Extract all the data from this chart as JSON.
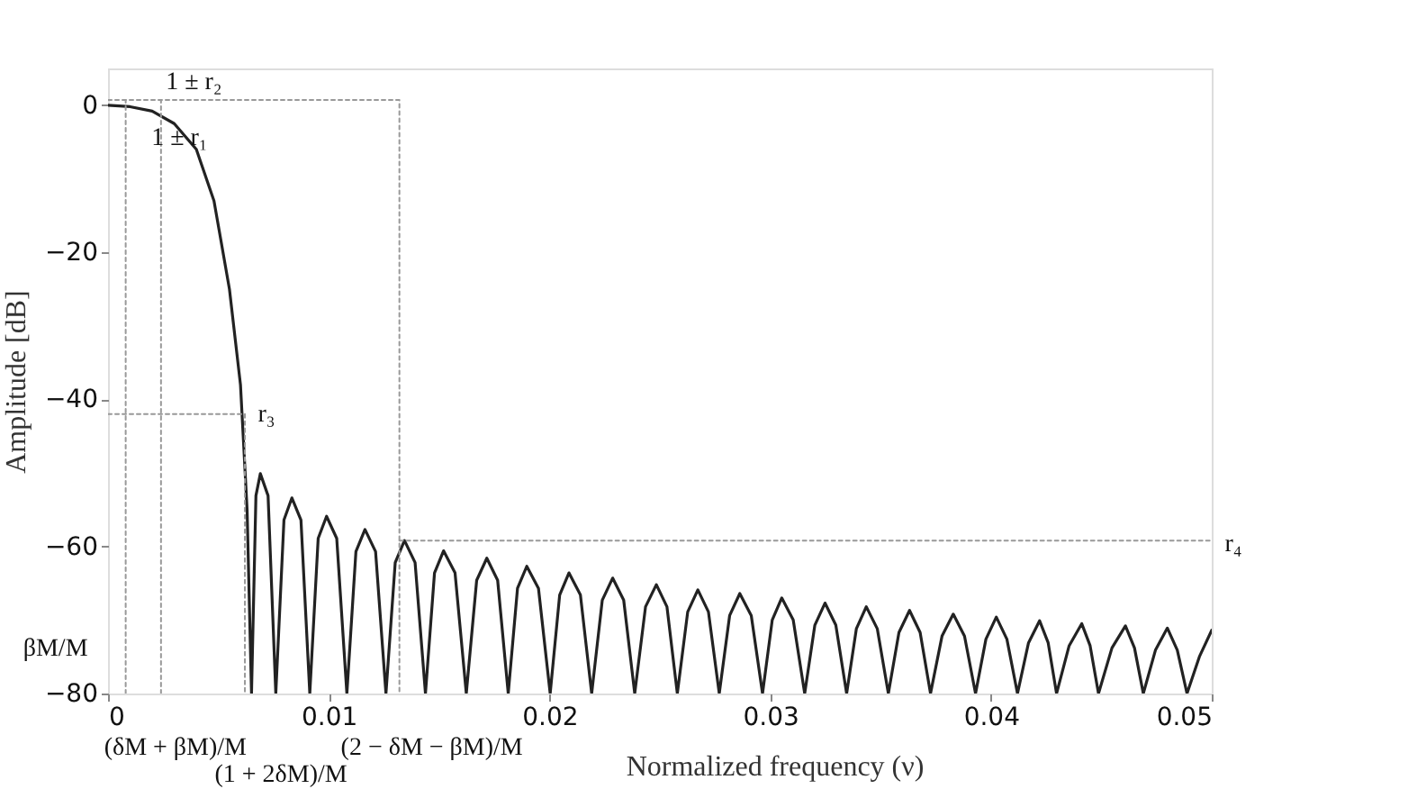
{
  "chart_data": {
    "type": "line",
    "xlabel": "Normalized frequency (ν)",
    "ylabel": "Amplitude [dB]",
    "xlim": [
      0,
      0.05
    ],
    "xticks": [
      0,
      0.01,
      0.02,
      0.03,
      0.04,
      0.05
    ],
    "ylim": [
      -80,
      5
    ],
    "yticks": [
      -80,
      -60,
      -40,
      -20,
      0
    ],
    "series": [
      {
        "color": "#222222",
        "line_style": "solid",
        "x": [
          0,
          0.001,
          0.002,
          0.003,
          0.004,
          0.0048,
          0.0055,
          0.006,
          0.0063,
          0.0065,
          0.0067,
          0.0069,
          0.00725,
          0.0076,
          0.00797,
          0.00833,
          0.00874,
          0.00914,
          0.00952,
          0.0099,
          0.01036,
          0.01082,
          0.01123,
          0.01164,
          0.01212,
          0.01259,
          0.01301,
          0.01343,
          0.01391,
          0.01438,
          0.01479,
          0.0152,
          0.01572,
          0.01623,
          0.0167,
          0.01716,
          0.01765,
          0.01813,
          0.01855,
          0.01897,
          0.0195,
          0.02003,
          0.02046,
          0.02088,
          0.0214,
          0.02191,
          0.02239,
          0.02286,
          0.02336,
          0.02386,
          0.02435,
          0.02484,
          0.02532,
          0.02579,
          0.02626,
          0.02672,
          0.0272,
          0.02769,
          0.02816,
          0.02862,
          0.02914,
          0.02965,
          0.03009,
          0.03052,
          0.03104,
          0.03156,
          0.03202,
          0.03248,
          0.03297,
          0.03346,
          0.0339,
          0.03435,
          0.03485,
          0.03535,
          0.03583,
          0.03631,
          0.03679,
          0.03726,
          0.03778,
          0.03829,
          0.0388,
          0.0393,
          0.03977,
          0.04024,
          0.04072,
          0.0412,
          0.0417,
          0.0422,
          0.04259,
          0.04297,
          0.04354,
          0.04411,
          0.04449,
          0.04487,
          0.04548,
          0.04609,
          0.0465,
          0.0469,
          0.04745,
          0.04799,
          0.04844,
          0.04888,
          0.04944,
          0.05
        ],
        "values": [
          0,
          -0.2,
          -0.8,
          -2.5,
          -6,
          -13,
          -25,
          -38,
          -55,
          -80,
          -53.1,
          -50.1,
          -53.1,
          -80,
          -56.4,
          -53.4,
          -56.4,
          -80,
          -58.9,
          -55.9,
          -58.9,
          -80,
          -60.7,
          -57.7,
          -60.7,
          -80,
          -62.2,
          -59.2,
          -62.2,
          -80,
          -63.6,
          -60.6,
          -63.6,
          -80,
          -64.6,
          -61.6,
          -64.6,
          -80,
          -65.7,
          -62.7,
          -65.7,
          -80,
          -66.6,
          -63.6,
          -66.6,
          -80,
          -67.3,
          -64.3,
          -67.3,
          -80,
          -68.2,
          -65.2,
          -68.2,
          -80,
          -68.9,
          -65.9,
          -68.9,
          -80,
          -69.4,
          -66.4,
          -69.4,
          -80,
          -70.0,
          -67.0,
          -70.0,
          -80,
          -70.7,
          -67.7,
          -70.7,
          -80,
          -71.2,
          -68.2,
          -71.2,
          -80,
          -71.7,
          -68.7,
          -71.7,
          -80,
          -72.2,
          -69.2,
          -72.2,
          -80,
          -72.6,
          -69.6,
          -72.6,
          -80,
          -73.1,
          -70.1,
          -73.1,
          -80,
          -73.5,
          -70.5,
          -73.5,
          -80,
          -73.8,
          -70.8,
          -73.8,
          -80,
          -74.1,
          -71.1,
          -74.1,
          -80,
          -75,
          -71.4
        ]
      },
      {
        "color": "#999999",
        "line_style": "dotted",
        "x": [
          0,
          0.0132,
          0.0132
        ],
        "values": [
          0.7,
          0.7,
          -80
        ]
      },
      {
        "color": "#999999",
        "line_style": "dotted",
        "x": [
          0.0132,
          0.05
        ],
        "values": [
          -59.2,
          -59.2
        ]
      },
      {
        "color": "#999999",
        "line_style": "dotted",
        "x": [
          0.0008,
          0.0008
        ],
        "values": [
          -80,
          0.7
        ]
      },
      {
        "color": "#999999",
        "line_style": "dotted",
        "x": [
          0.0024,
          0.0024
        ],
        "values": [
          -80,
          0.7
        ]
      },
      {
        "color": "#999999",
        "line_style": "dotted",
        "x": [
          0,
          0.0062,
          0.0062
        ],
        "values": [
          -42,
          -42,
          -80
        ]
      }
    ],
    "annotations": [
      {
        "text": "1 ± r₂",
        "x": 0.0003,
        "y": 0
      },
      {
        "text": "1 ± r₁",
        "x": 0.0003,
        "y": -1
      },
      {
        "text": "r₃",
        "x": 0.0062,
        "y": -42
      },
      {
        "text": "r₄",
        "x": 0.05,
        "y": -59.2
      },
      {
        "text": "βM/M",
        "x": 0.0008,
        "y": -80
      },
      {
        "text": "(δM + βM)/M",
        "x": 0.0024,
        "y": -80
      },
      {
        "text": "(1 + 2δM)/M",
        "x": 0.0062,
        "y": -80
      },
      {
        "text": "(2 − δM − βM)/M",
        "x": 0.0132,
        "y": -80
      }
    ]
  }
}
